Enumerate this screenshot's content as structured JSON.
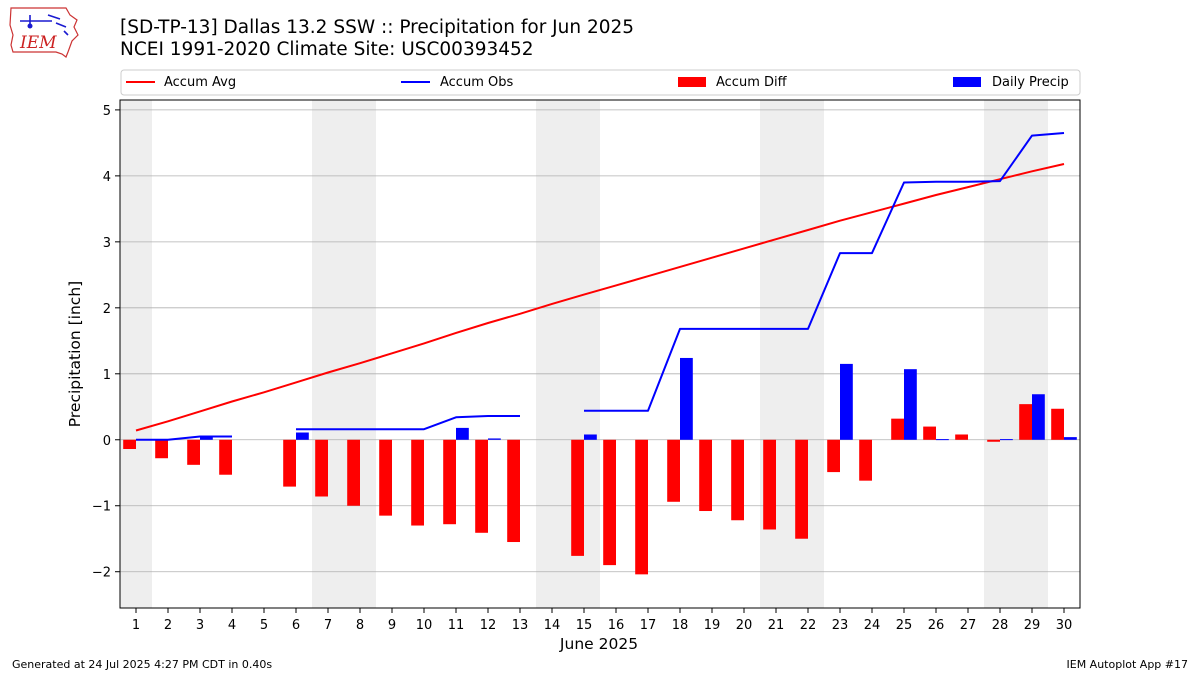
{
  "header": {
    "title_line1": "[SD-TP-13] Dallas 13.2 SSW :: Precipitation for Jun 2025",
    "title_line2": "NCEI 1991-2020 Climate Site: USC00393452",
    "logo_text": "IEM"
  },
  "footer": {
    "left": "Generated at 24 Jul 2025 4:27 PM CDT in 0.40s",
    "right": "IEM Autoplot App #17"
  },
  "colors": {
    "avg": "#ff0000",
    "obs": "#0000ff",
    "diff": "#ff0000",
    "daily": "#0000ff",
    "weekend_shade": "#eeeeee",
    "grid": "#b0b0b0"
  },
  "chart_data": {
    "type": "bar",
    "xlabel": "June 2025",
    "ylabel": "Precipitation [inch]",
    "xlim": [
      0.5,
      30.5
    ],
    "ylim": [
      -2.55,
      5.15
    ],
    "grid": "horizontal",
    "legend_placement": "top",
    "legend": [
      "Accum Avg",
      "Accum Obs",
      "Accum Diff",
      "Daily Precip"
    ],
    "x": [
      1,
      2,
      3,
      4,
      5,
      6,
      7,
      8,
      9,
      10,
      11,
      12,
      13,
      14,
      15,
      16,
      17,
      18,
      19,
      20,
      21,
      22,
      23,
      24,
      25,
      26,
      27,
      28,
      29,
      30
    ],
    "x_tick_labels": [
      "1",
      "2",
      "3",
      "4",
      "5",
      "6",
      "7",
      "8",
      "9",
      "10",
      "11",
      "12",
      "13",
      "14",
      "15",
      "16",
      "17",
      "18",
      "19",
      "20",
      "21",
      "22",
      "23",
      "24",
      "25",
      "26",
      "27",
      "28",
      "29",
      "30"
    ],
    "y_ticks": [
      -2,
      -1,
      0,
      1,
      2,
      3,
      4,
      5
    ],
    "y_tick_labels": [
      "−2",
      "−1",
      "0",
      "1",
      "2",
      "3",
      "4",
      "5"
    ],
    "shaded_days": [
      1,
      7,
      8,
      14,
      15,
      21,
      22,
      28,
      29
    ],
    "series": [
      {
        "name": "Accum Avg",
        "kind": "line",
        "values": [
          0.14,
          0.28,
          0.43,
          0.58,
          0.72,
          0.87,
          1.02,
          1.16,
          1.31,
          1.46,
          1.62,
          1.77,
          1.91,
          2.06,
          2.2,
          2.34,
          2.48,
          2.62,
          2.76,
          2.9,
          3.04,
          3.18,
          3.32,
          3.45,
          3.58,
          3.71,
          3.83,
          3.95,
          4.07,
          4.18
        ]
      },
      {
        "name": "Accum Obs",
        "kind": "line",
        "values": [
          0.0,
          0.0,
          0.05,
          0.05,
          null,
          0.16,
          0.16,
          0.16,
          0.16,
          0.16,
          0.34,
          0.36,
          0.36,
          null,
          0.44,
          0.44,
          0.44,
          1.68,
          1.68,
          1.68,
          1.68,
          1.68,
          2.83,
          2.83,
          3.9,
          3.91,
          3.91,
          3.92,
          4.61,
          4.65
        ]
      },
      {
        "name": "Accum Diff",
        "kind": "bar",
        "values": [
          -0.14,
          -0.28,
          -0.38,
          -0.53,
          null,
          -0.71,
          -0.86,
          -1.0,
          -1.15,
          -1.3,
          -1.28,
          -1.41,
          -1.55,
          null,
          -1.76,
          -1.9,
          -2.04,
          -0.94,
          -1.08,
          -1.22,
          -1.36,
          -1.5,
          -0.49,
          -0.62,
          0.32,
          0.2,
          0.08,
          -0.03,
          0.54,
          0.47
        ]
      },
      {
        "name": "Daily Precip",
        "kind": "bar",
        "values": [
          0.0,
          0.0,
          0.05,
          0.0,
          null,
          0.11,
          0.0,
          0.0,
          0.0,
          0.0,
          0.18,
          0.02,
          0.0,
          null,
          0.08,
          0.0,
          0.0,
          1.24,
          0.0,
          0.0,
          0.0,
          0.0,
          1.15,
          0.0,
          1.07,
          0.01,
          0.0,
          0.01,
          0.69,
          0.04
        ]
      }
    ]
  }
}
